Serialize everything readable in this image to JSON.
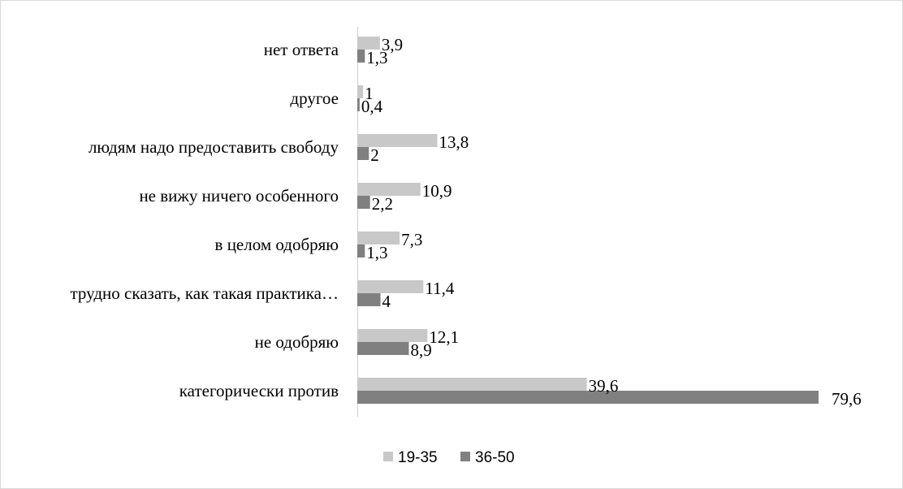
{
  "chart_data": {
    "type": "bar",
    "orientation": "horizontal",
    "categories": [
      "нет ответа",
      "другое",
      "людям надо предоставить свободу",
      "не вижу ничего особенного",
      "в целом одобряю",
      "трудно сказать, как такая практика…",
      "не одобряю",
      "категорически против"
    ],
    "series": [
      {
        "name": "19-35",
        "color": "#c8c8c8",
        "values": [
          3.9,
          1,
          13.8,
          10.9,
          7.3,
          11.4,
          12.1,
          39.6
        ],
        "labels": [
          "3,9",
          "1",
          "13,8",
          "10,9",
          "7,3",
          "11,4",
          "12,1",
          "39,6"
        ]
      },
      {
        "name": "36-50",
        "color": "#808080",
        "values": [
          1.3,
          0.4,
          2,
          2.2,
          1.3,
          4,
          8.9,
          79.6
        ],
        "labels": [
          "1,3",
          "0,4",
          "2",
          "2,2",
          "1,3",
          "4",
          "8,9",
          "79,6"
        ]
      }
    ],
    "xlim": [
      0,
      80
    ],
    "grid": false,
    "legend_position": "bottom"
  }
}
